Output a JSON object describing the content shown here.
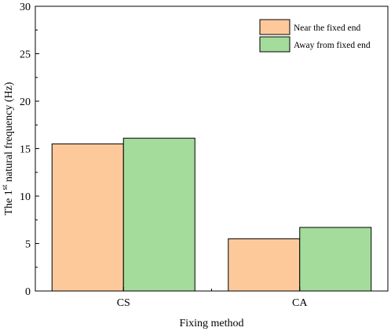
{
  "chart_data": {
    "type": "bar",
    "title": "",
    "xlabel": "Fixing method",
    "ylabel": {
      "prefix": "The 1",
      "superscript": "st",
      "suffix": " natural frequency (Hz)"
    },
    "categories": [
      "CS",
      "CA"
    ],
    "series": [
      {
        "name": "Near the fixed end",
        "values": [
          15.5,
          5.5
        ],
        "color": "#FDC99B"
      },
      {
        "name": "Away from fixed end",
        "values": [
          16.1,
          6.7
        ],
        "color": "#A3DC9B"
      }
    ],
    "ylim": [
      0,
      30
    ],
    "yticks": [
      0,
      5,
      10,
      15,
      20,
      25,
      30
    ],
    "grid": false,
    "legend": "top-right",
    "bar_edge_color": "#000000"
  }
}
